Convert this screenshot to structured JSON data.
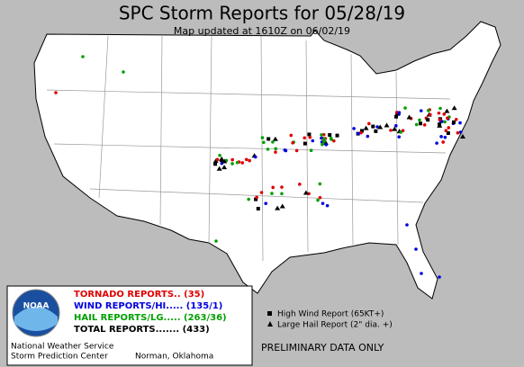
{
  "header": {
    "title": "SPC Storm Reports for 05/28/19",
    "subtitle": "Map updated at 1610Z on 06/02/19"
  },
  "legend": {
    "items": [
      {
        "label": "TORNADO REPORTS.. (35)",
        "color": "#e00000"
      },
      {
        "label": "WIND REPORTS/HI..... (135/1)",
        "color": "#0000e0"
      },
      {
        "label": "HAIL REPORTS/LG..... (263/36)",
        "color": "#00a000"
      },
      {
        "label": "TOTAL REPORTS....... (433)",
        "color": "#000000"
      }
    ],
    "logo": "NOAA"
  },
  "key": {
    "items": [
      "High Wind Report (65KT+)",
      "Large Hail Report (2\" dia. +)"
    ]
  },
  "footer": {
    "agency": "National Weather Service",
    "center": "Storm Prediction Center",
    "location": "Norman, Oklahoma",
    "notice": "PRELIMINARY DATA ONLY"
  }
}
